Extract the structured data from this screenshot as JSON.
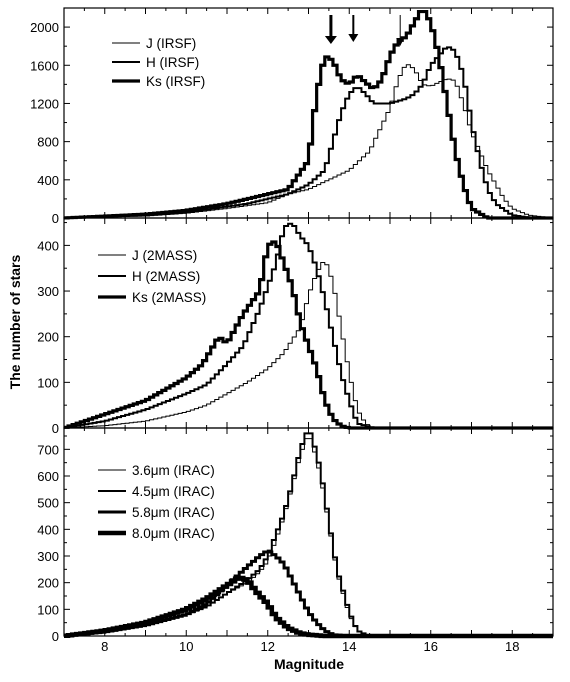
{
  "figure": {
    "ylabel": "The number of stars",
    "xlabel": "Magnitude"
  },
  "chart_data": [
    {
      "type": "line",
      "xlim": [
        7,
        19
      ],
      "ylim": [
        0,
        2200
      ],
      "yticks": [
        0,
        400,
        800,
        1200,
        1600,
        2000
      ],
      "xticks": [
        8,
        10,
        12,
        14,
        16,
        18
      ],
      "legend_position": "top-left",
      "arrow_x": [
        13.55,
        14.1,
        15.25
      ],
      "series": [
        {
          "name": "J (IRSF)",
          "stroke": 1,
          "x": [
            7,
            9,
            10,
            11,
            12,
            12.5,
            13,
            13.5,
            14,
            14.5,
            15,
            15.2,
            15.4,
            15.6,
            15.8,
            16,
            16.2,
            16.4,
            16.6,
            16.8,
            17,
            17.2,
            17.4,
            17.6,
            17.8,
            18,
            18.4,
            19
          ],
          "y": [
            0,
            20,
            50,
            100,
            160,
            250,
            300,
            400,
            500,
            700,
            1150,
            1450,
            1620,
            1560,
            1400,
            1380,
            1420,
            1460,
            1440,
            1200,
            900,
            700,
            500,
            350,
            200,
            100,
            30,
            0
          ]
        },
        {
          "name": "H (IRSF)",
          "stroke": 2,
          "x": [
            7,
            9,
            10,
            11,
            11.5,
            12,
            12.5,
            13,
            13.4,
            13.6,
            13.8,
            14,
            14.2,
            14.4,
            14.6,
            15,
            15.4,
            15.6,
            15.8,
            16,
            16.2,
            16.4,
            16.6,
            16.8,
            17,
            17.2,
            17.4,
            17.6,
            18,
            18.5,
            19
          ],
          "y": [
            0,
            30,
            60,
            120,
            150,
            200,
            250,
            350,
            500,
            800,
            1100,
            1300,
            1380,
            1300,
            1200,
            1200,
            1250,
            1300,
            1400,
            1600,
            1700,
            1800,
            1750,
            1500,
            1000,
            600,
            300,
            150,
            30,
            0,
            0
          ]
        },
        {
          "name": "Ks (IRSF)",
          "stroke": 3.2,
          "x": [
            7,
            9,
            10,
            11,
            11.5,
            12,
            12.5,
            13,
            13.2,
            13.4,
            13.6,
            13.8,
            14,
            14.2,
            14.4,
            14.6,
            14.8,
            15,
            15.2,
            15.4,
            15.6,
            15.8,
            16,
            16.2,
            16.4,
            16.6,
            16.8,
            17,
            17.4,
            19
          ],
          "y": [
            0,
            40,
            80,
            150,
            200,
            250,
            300,
            600,
            1300,
            1700,
            1650,
            1450,
            1400,
            1500,
            1420,
            1350,
            1450,
            1700,
            1850,
            1900,
            2050,
            2200,
            2050,
            1700,
            1200,
            700,
            350,
            100,
            0,
            0
          ]
        }
      ]
    },
    {
      "type": "line",
      "xlim": [
        7,
        19
      ],
      "ylim": [
        0,
        460
      ],
      "yticks": [
        0,
        100,
        200,
        300,
        400
      ],
      "xticks": [
        8,
        10,
        12,
        14,
        16,
        18
      ],
      "legend_position": "top-left",
      "series": [
        {
          "name": "J (2MASS)",
          "stroke": 1,
          "x": [
            7,
            8,
            9,
            10,
            10.5,
            11,
            11.5,
            12,
            12.4,
            12.8,
            13,
            13.2,
            13.4,
            13.6,
            13.8,
            14,
            14.2,
            14.4,
            14.6,
            15,
            19
          ],
          "y": [
            0,
            5,
            15,
            35,
            50,
            75,
            100,
            130,
            165,
            220,
            290,
            340,
            370,
            320,
            220,
            120,
            40,
            10,
            0,
            0,
            0
          ]
        },
        {
          "name": "H (2MASS)",
          "stroke": 2,
          "x": [
            7,
            8,
            9,
            10,
            10.5,
            11,
            11.4,
            11.8,
            12,
            12.2,
            12.4,
            12.6,
            12.8,
            13,
            13.2,
            13.4,
            13.6,
            13.8,
            14,
            14.2,
            14.6,
            19
          ],
          "y": [
            0,
            15,
            40,
            75,
            95,
            140,
            180,
            260,
            310,
            360,
            440,
            450,
            420,
            400,
            350,
            280,
            200,
            120,
            60,
            10,
            0,
            0
          ]
        },
        {
          "name": "Ks (2MASS)",
          "stroke": 3.2,
          "x": [
            7,
            8,
            9,
            10,
            10.4,
            10.8,
            11,
            11.4,
            11.8,
            12,
            12.2,
            12.4,
            12.6,
            12.8,
            13,
            13.2,
            13.4,
            13.6,
            13.8,
            14,
            14.4,
            19
          ],
          "y": [
            0,
            30,
            60,
            110,
            140,
            200,
            185,
            250,
            300,
            400,
            410,
            360,
            310,
            230,
            180,
            130,
            60,
            20,
            5,
            0,
            0,
            0
          ]
        }
      ]
    },
    {
      "type": "line",
      "xlim": [
        7,
        19
      ],
      "ylim": [
        0,
        780
      ],
      "yticks": [
        0,
        100,
        200,
        300,
        400,
        500,
        600,
        700
      ],
      "xticks": [
        8,
        10,
        12,
        14,
        16,
        18
      ],
      "legend_position": "left",
      "series": [
        {
          "name": "3.6μm (IRAC)",
          "stroke": 1,
          "x": [
            7,
            8,
            9,
            10,
            10.5,
            11,
            11.5,
            11.8,
            12,
            12.2,
            12.4,
            12.6,
            12.8,
            13,
            13.1,
            13.3,
            13.5,
            13.7,
            14,
            14.2,
            14.5,
            19
          ],
          "y": [
            0,
            15,
            40,
            80,
            110,
            160,
            200,
            240,
            280,
            360,
            450,
            560,
            680,
            760,
            720,
            600,
            420,
            240,
            80,
            20,
            0,
            0
          ]
        },
        {
          "name": "4.5μm (IRAC)",
          "stroke": 2,
          "x": [
            7,
            8,
            9,
            10,
            10.5,
            11,
            11.5,
            11.8,
            12,
            12.2,
            12.4,
            12.6,
            12.8,
            13,
            13.1,
            13.3,
            13.5,
            13.7,
            14,
            14.2,
            14.5,
            19
          ],
          "y": [
            0,
            15,
            40,
            80,
            110,
            160,
            210,
            250,
            300,
            380,
            460,
            570,
            700,
            780,
            740,
            620,
            430,
            250,
            90,
            20,
            0,
            0
          ]
        },
        {
          "name": "5.8μm (IRAC)",
          "stroke": 3,
          "x": [
            7,
            8,
            9,
            10,
            10.5,
            11,
            11.5,
            11.8,
            12,
            12.2,
            12.4,
            12.6,
            12.8,
            13,
            13.2,
            13.4,
            13.6,
            14,
            19
          ],
          "y": [
            0,
            15,
            40,
            80,
            120,
            190,
            260,
            300,
            320,
            300,
            270,
            210,
            150,
            90,
            50,
            20,
            5,
            0,
            0
          ]
        },
        {
          "name": "8.0μm (IRAC)",
          "stroke": 4.5,
          "x": [
            7,
            8,
            9,
            10,
            10.5,
            11,
            11.3,
            11.5,
            11.7,
            12,
            12.2,
            12.5,
            12.8,
            13,
            13.4,
            19
          ],
          "y": [
            0,
            20,
            50,
            100,
            140,
            190,
            220,
            210,
            170,
            120,
            70,
            30,
            10,
            5,
            0,
            0
          ]
        }
      ]
    }
  ]
}
